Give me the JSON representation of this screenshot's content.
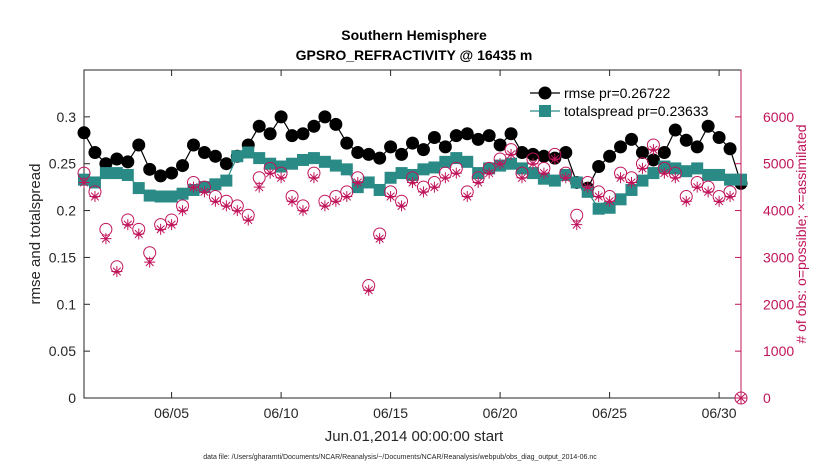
{
  "colors": {
    "rmse": "#000000",
    "totalspread": "#2a8a86",
    "obs": "#c0145a",
    "axis": "#262626"
  },
  "chart_data": {
    "type": "line",
    "title": "Southern Hemisphere",
    "subtitle": "GPSRO_REFRACTIVITY @ 16435 m",
    "xlabel": "Jun.01,2014 00:00:00 start",
    "ylabel": "rmse and totalspread",
    "ylabel_right": "# of obs: o=possible; ×=assimilated",
    "footnote": "data file: /Users/gharamti/Documents/NCAR/Reanalysis/~/Documents/NCAR/Reanalysis/webpub/obs_diag_output_2014-06.nc",
    "xlim": [
      1,
      31
    ],
    "ylim": [
      0,
      0.35
    ],
    "ylim_right": [
      0,
      7000
    ],
    "x_ticks": [
      5,
      10,
      15,
      20,
      25,
      30
    ],
    "x_tick_labels": [
      "06/05",
      "06/10",
      "06/15",
      "06/20",
      "06/25",
      "06/30"
    ],
    "y_ticks": [
      0,
      0.05,
      0.1,
      0.15,
      0.2,
      0.25,
      0.3
    ],
    "y_tick_labels": [
      "0",
      "0.05",
      "0.1",
      "0.15",
      "0.2",
      "0.25",
      "0.3"
    ],
    "y_right_ticks": [
      0,
      1000,
      2000,
      3000,
      4000,
      5000,
      6000
    ],
    "y_right_tick_labels": [
      "0",
      "1000",
      "2000",
      "3000",
      "4000",
      "5000",
      "6000"
    ],
    "legend_position": "top-right",
    "series": [
      {
        "name": "rmse",
        "legend_label": "rmse pr=0.26722",
        "axis": "left",
        "marker": "filled-circle",
        "x": [
          1.0,
          1.5,
          2.0,
          2.5,
          3.0,
          3.5,
          4.0,
          4.5,
          5.0,
          5.5,
          6.0,
          6.5,
          7.0,
          7.5,
          8.0,
          8.5,
          9.0,
          9.5,
          10.0,
          10.5,
          11.0,
          11.5,
          12.0,
          12.5,
          13.0,
          13.5,
          14.0,
          14.5,
          15.0,
          15.5,
          16.0,
          16.5,
          17.0,
          17.5,
          18.0,
          18.5,
          19.0,
          19.5,
          20.0,
          20.5,
          21.0,
          21.5,
          22.0,
          22.5,
          23.0,
          23.5,
          24.0,
          24.5,
          25.0,
          25.5,
          26.0,
          26.5,
          27.0,
          27.5,
          28.0,
          28.5,
          29.0,
          29.5,
          30.0,
          30.5,
          31.0
        ],
        "values": [
          0.283,
          0.262,
          0.25,
          0.255,
          0.252,
          0.27,
          0.244,
          0.237,
          0.24,
          0.248,
          0.27,
          0.262,
          0.258,
          0.25,
          0.258,
          0.27,
          0.29,
          0.282,
          0.3,
          0.28,
          0.282,
          0.29,
          0.3,
          0.292,
          0.272,
          0.262,
          0.26,
          0.256,
          0.268,
          0.26,
          0.272,
          0.265,
          0.278,
          0.268,
          0.28,
          0.282,
          0.276,
          0.28,
          0.27,
          0.282,
          0.262,
          0.26,
          0.258,
          0.256,
          0.262,
          0.23,
          0.224,
          0.247,
          0.258,
          0.268,
          0.276,
          0.262,
          0.254,
          0.262,
          0.286,
          0.275,
          0.268,
          0.29,
          0.278,
          0.266,
          0.229
        ]
      },
      {
        "name": "totalspread",
        "legend_label": "totalspread pr=0.23633",
        "axis": "left",
        "marker": "filled-square",
        "x": [
          1.0,
          1.5,
          2.0,
          2.5,
          3.0,
          3.5,
          4.0,
          4.5,
          5.0,
          5.5,
          6.0,
          6.5,
          7.0,
          7.5,
          8.0,
          8.5,
          9.0,
          9.5,
          10.0,
          10.5,
          11.0,
          11.5,
          12.0,
          12.5,
          13.0,
          13.5,
          14.0,
          14.5,
          15.0,
          15.5,
          16.0,
          16.5,
          17.0,
          17.5,
          18.0,
          18.5,
          19.0,
          19.5,
          20.0,
          20.5,
          21.0,
          21.5,
          22.0,
          22.5,
          23.0,
          23.5,
          24.0,
          24.5,
          25.0,
          25.5,
          26.0,
          26.5,
          27.0,
          27.5,
          28.0,
          28.5,
          29.0,
          29.5,
          30.0,
          30.5,
          31.0
        ],
        "values": [
          0.233,
          0.23,
          0.24,
          0.24,
          0.238,
          0.224,
          0.216,
          0.215,
          0.215,
          0.218,
          0.222,
          0.225,
          0.228,
          0.232,
          0.258,
          0.262,
          0.256,
          0.25,
          0.247,
          0.25,
          0.254,
          0.256,
          0.252,
          0.248,
          0.244,
          0.225,
          0.23,
          0.222,
          0.235,
          0.24,
          0.238,
          0.244,
          0.246,
          0.252,
          0.256,
          0.252,
          0.24,
          0.245,
          0.248,
          0.25,
          0.245,
          0.24,
          0.234,
          0.232,
          0.238,
          0.23,
          0.22,
          0.202,
          0.203,
          0.212,
          0.222,
          0.232,
          0.24,
          0.247,
          0.245,
          0.242,
          0.245,
          0.238,
          0.238,
          0.233,
          0.233
        ]
      },
      {
        "name": "obs possible",
        "axis": "right",
        "marker": "open-circle",
        "x": [
          1.0,
          1.5,
          2.0,
          2.5,
          3.0,
          3.5,
          4.0,
          4.5,
          5.0,
          5.5,
          6.0,
          6.5,
          7.0,
          7.5,
          8.0,
          8.5,
          9.0,
          9.5,
          10.0,
          10.5,
          11.0,
          11.5,
          12.0,
          12.5,
          13.0,
          13.5,
          14.0,
          14.5,
          15.0,
          15.5,
          16.0,
          16.5,
          17.0,
          17.5,
          18.0,
          18.5,
          19.0,
          19.5,
          20.0,
          20.5,
          21.0,
          21.5,
          22.0,
          22.5,
          23.0,
          23.5,
          24.0,
          24.5,
          25.0,
          25.5,
          26.0,
          26.5,
          27.0,
          27.5,
          28.0,
          28.5,
          29.0,
          29.5,
          30.0,
          30.5,
          31.0
        ],
        "values": [
          4800,
          4400,
          3600,
          2800,
          3800,
          3600,
          3100,
          3700,
          3800,
          4100,
          4600,
          4500,
          4300,
          4200,
          4100,
          3900,
          4700,
          4900,
          4800,
          4300,
          4100,
          4800,
          4200,
          4300,
          4400,
          4700,
          2400,
          3500,
          4400,
          4200,
          4700,
          4500,
          4600,
          4800,
          4900,
          4400,
          4700,
          4900,
          5100,
          5300,
          4800,
          5100,
          4900,
          5200,
          4800,
          3900,
          4600,
          4400,
          4300,
          4800,
          4700,
          5000,
          5400,
          4900,
          4800,
          4300,
          4600,
          4500,
          4300,
          4400,
          0
        ]
      },
      {
        "name": "obs assimilated",
        "axis": "right",
        "marker": "asterisk",
        "x": [
          1.0,
          1.5,
          2.0,
          2.5,
          3.0,
          3.5,
          4.0,
          4.5,
          5.0,
          5.5,
          6.0,
          6.5,
          7.0,
          7.5,
          8.0,
          8.5,
          9.0,
          9.5,
          10.0,
          10.5,
          11.0,
          11.5,
          12.0,
          12.5,
          13.0,
          13.5,
          14.0,
          14.5,
          15.0,
          15.5,
          16.0,
          16.5,
          17.0,
          17.5,
          18.0,
          18.5,
          19.0,
          19.5,
          20.0,
          20.5,
          21.0,
          21.5,
          22.0,
          22.5,
          23.0,
          23.5,
          24.0,
          24.5,
          25.0,
          25.5,
          26.0,
          26.5,
          27.0,
          27.5,
          28.0,
          28.5,
          29.0,
          29.5,
          30.0,
          30.5,
          31.0
        ],
        "values": [
          4600,
          4300,
          3400,
          2700,
          3700,
          3500,
          2900,
          3600,
          3700,
          4000,
          4500,
          4400,
          4200,
          4100,
          4000,
          3800,
          4500,
          4800,
          4700,
          4200,
          4000,
          4700,
          4100,
          4200,
          4300,
          4600,
          2300,
          3400,
          4300,
          4100,
          4600,
          4400,
          4500,
          4700,
          4800,
          4300,
          4600,
          4800,
          5000,
          5200,
          4700,
          5000,
          4800,
          5100,
          4700,
          3700,
          4500,
          4300,
          4200,
          4700,
          4600,
          4900,
          5300,
          4800,
          4700,
          4200,
          4500,
          4400,
          4200,
          4300,
          0
        ]
      }
    ]
  }
}
